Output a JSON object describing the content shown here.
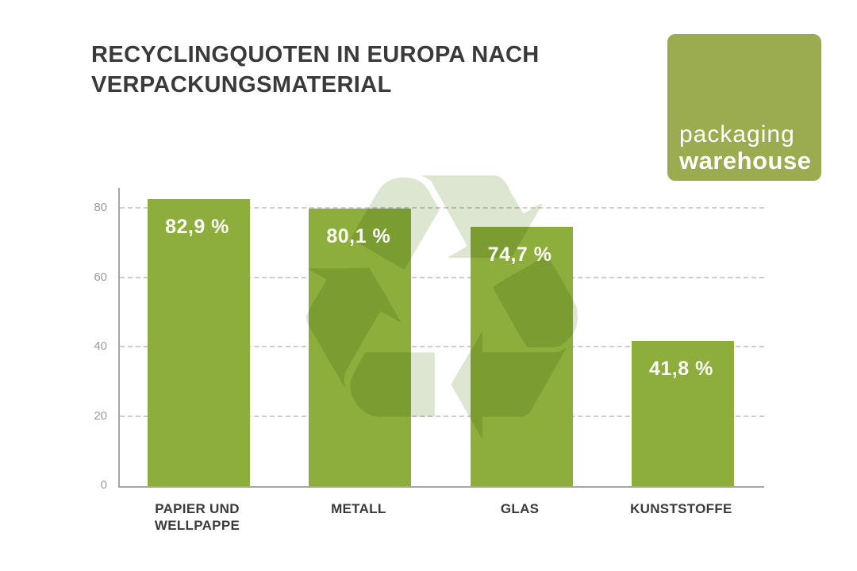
{
  "page": {
    "background": "#ffffff"
  },
  "header": {
    "title_line1": "RECYCLINGQUOTEN IN EUROPA NACH",
    "title_line2": "VERPACKUNGSMATERIAL"
  },
  "logo": {
    "line1": "packaging",
    "line2": "warehouse",
    "bg_color": "#9aab50",
    "text_color": "#ffffff"
  },
  "icons": {
    "recycling_glyph": "♻"
  },
  "chart_data": {
    "type": "bar",
    "title": "Recyclingquoten in Europa nach Verpackungsmaterial",
    "categories": [
      "PAPIER UND WELLPAPPE",
      "METALL",
      "GLAS",
      "KUNSTSTOFFE"
    ],
    "values": [
      82.9,
      80.1,
      74.7,
      41.8
    ],
    "value_labels": [
      "82,9 %",
      "80,1 %",
      "74,7 %",
      "41,8 %"
    ],
    "unit": "%",
    "xlabel": "",
    "ylabel": "",
    "y_ticks": [
      0,
      20,
      40,
      60,
      80
    ],
    "ylim": [
      0,
      86
    ],
    "grid": "horizontal-dashed",
    "legend": "none",
    "bar_color": "#8dad3c",
    "gridline_color": "#cdcdcd",
    "axis_color": "#a6a6a6",
    "tick_text_color": "#9b9b9b",
    "watermark": "recycling-symbol",
    "watermark_color": "#dde6d0"
  }
}
